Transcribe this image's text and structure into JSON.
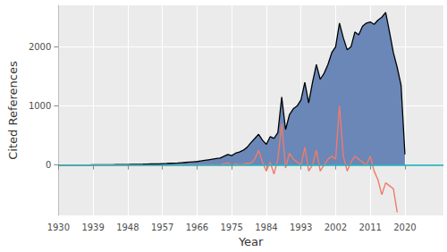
{
  "chart_data": {
    "type": "line",
    "x_label": "Year",
    "y_label": "Cited References",
    "x": [
      1930,
      1931,
      1932,
      1933,
      1934,
      1935,
      1936,
      1937,
      1938,
      1939,
      1940,
      1941,
      1942,
      1943,
      1944,
      1945,
      1946,
      1947,
      1948,
      1949,
      1950,
      1951,
      1952,
      1953,
      1954,
      1955,
      1956,
      1957,
      1958,
      1959,
      1960,
      1961,
      1962,
      1963,
      1964,
      1965,
      1966,
      1967,
      1968,
      1969,
      1970,
      1971,
      1972,
      1973,
      1974,
      1975,
      1976,
      1977,
      1978,
      1979,
      1980,
      1981,
      1982,
      1983,
      1984,
      1985,
      1986,
      1987,
      1988,
      1989,
      1990,
      1991,
      1992,
      1993,
      1994,
      1995,
      1996,
      1997,
      1998,
      1999,
      2000,
      2001,
      2002,
      2003,
      2004,
      2005,
      2006,
      2007,
      2008,
      2009,
      2010,
      2011,
      2012,
      2013,
      2014,
      2015,
      2016,
      2017,
      2018,
      2019,
      2020
    ],
    "series": [
      {
        "type": "area",
        "color": "#6a87b8",
        "values": [
          1,
          1,
          1,
          2,
          2,
          2,
          3,
          3,
          3,
          4,
          4,
          5,
          5,
          6,
          6,
          7,
          8,
          9,
          10,
          11,
          12,
          14,
          15,
          17,
          19,
          20,
          22,
          25,
          27,
          30,
          32,
          35,
          40,
          45,
          50,
          55,
          60,
          70,
          80,
          90,
          100,
          110,
          120,
          150,
          180,
          160,
          200,
          220,
          250,
          300,
          380,
          450,
          520,
          420,
          350,
          480,
          450,
          550,
          1150,
          600,
          850,
          950,
          1000,
          1100,
          1400,
          1050,
          1400,
          1700,
          1450,
          1550,
          1700,
          1900,
          2000,
          2400,
          2150,
          1950,
          2000,
          2250,
          2200,
          2350,
          2400,
          2420,
          2380,
          2450,
          2500,
          2580,
          2250,
          1900,
          1650,
          1350,
          180
        ]
      },
      {
        "type": "line",
        "color": "#ef7b6b",
        "values": [
          0,
          0,
          0,
          0,
          0,
          0,
          1,
          0,
          0,
          1,
          0,
          1,
          0,
          0,
          1,
          0,
          1,
          0,
          1,
          0,
          1,
          1,
          0,
          1,
          1,
          0,
          1,
          2,
          0,
          2,
          1,
          2,
          3,
          2,
          3,
          2,
          3,
          5,
          5,
          5,
          5,
          5,
          0,
          20,
          40,
          -10,
          20,
          5,
          10,
          30,
          30,
          100,
          250,
          50,
          -100,
          50,
          -150,
          100,
          700,
          -50,
          200,
          100,
          50,
          0,
          300,
          -100,
          0,
          250,
          -100,
          0,
          100,
          150,
          100,
          1000,
          150,
          -100,
          50,
          150,
          100,
          50,
          0,
          150,
          -100,
          -250,
          -500,
          -300,
          -350,
          -400,
          -800,
          null,
          null
        ]
      }
    ],
    "reference_line": {
      "y": 0,
      "color": "#1ab4c2"
    },
    "xlim": [
      1930,
      2030
    ],
    "xticks": [
      1930,
      1939,
      1948,
      1957,
      1966,
      1975,
      1984,
      1993,
      2002,
      2011,
      2020
    ],
    "ylim": [
      -850,
      2700
    ],
    "yticks": [
      0,
      1000,
      2000
    ],
    "grid": true
  }
}
